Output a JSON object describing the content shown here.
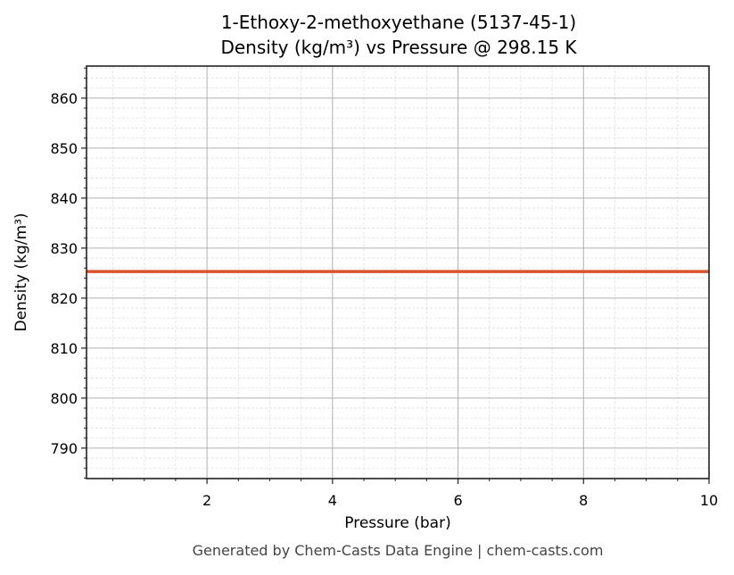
{
  "title": {
    "line1": "1-Ethoxy-2-methoxyethane (5137-45-1)",
    "line2": "Density (kg/m³) vs Pressure @ 298.15 K"
  },
  "footer": "Generated by Chem-Casts Data Engine | chem-casts.com",
  "colors": {
    "line": "#d9542a",
    "axis": "#222222",
    "major_grid": "#b0b0b0",
    "minor_grid": "#e0e0e0",
    "footer": "#444444"
  },
  "chart_data": {
    "type": "line",
    "title": "1-Ethoxy-2-methoxyethane (5137-45-1)\nDensity (kg/m³) vs Pressure @ 298.15 K",
    "xlabel": "Pressure (bar)",
    "ylabel": "Density (kg/m³)",
    "xlim": [
      0.08,
      10
    ],
    "ylim": [
      783.9,
      866.4
    ],
    "x_ticks": [
      2,
      4,
      6,
      8,
      10
    ],
    "y_ticks": [
      790,
      800,
      810,
      820,
      830,
      840,
      850,
      860
    ],
    "grid": true,
    "minor_grid": true,
    "legend": null,
    "series": [
      {
        "name": "Density",
        "x": [
          0.08,
          10
        ],
        "values": [
          825.3,
          825.3
        ]
      }
    ]
  }
}
